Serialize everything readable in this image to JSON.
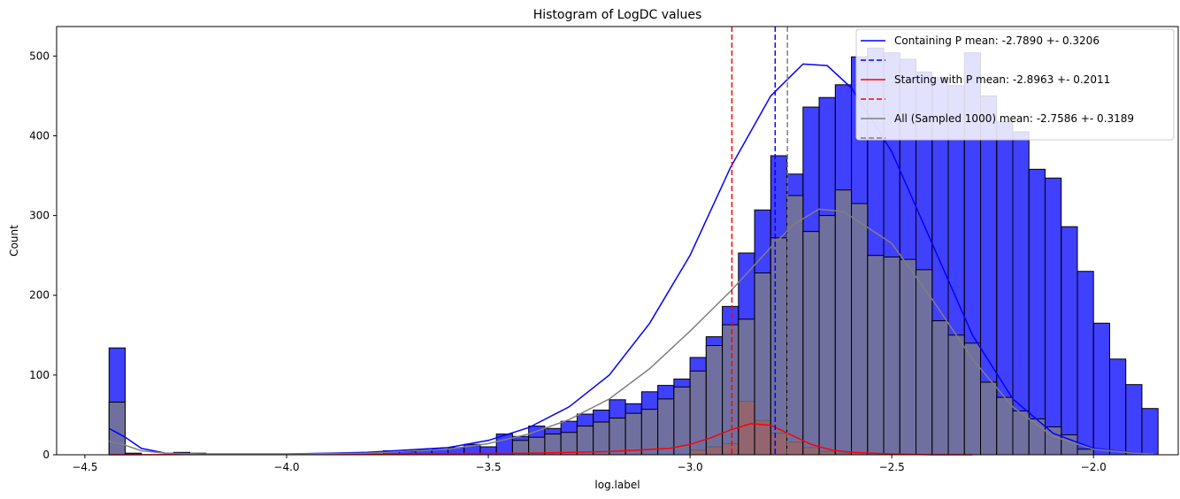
{
  "chart_data": {
    "type": "bar",
    "title": "Histogram of LogDC values",
    "xlabel": "log.label",
    "ylabel": "Count",
    "xlim": [
      -4.57,
      -1.79
    ],
    "ylim": [
      0,
      537
    ],
    "xticks": [
      -4.5,
      -4.0,
      -3.5,
      -3.0,
      -2.5,
      -2.0
    ],
    "xtick_labels": [
      "−4.5",
      "−4.0",
      "−3.5",
      "−3.0",
      "−2.5",
      "−2.0"
    ],
    "yticks": [
      0,
      100,
      200,
      300,
      400,
      500
    ],
    "ytick_labels": [
      "0",
      "100",
      "200",
      "300",
      "400",
      "500"
    ],
    "bin_width": 0.04,
    "legend": {
      "position": "upper right"
    },
    "series": [
      {
        "name": "Containing P mean: -2.7890 +- 0.3206",
        "color": "#0000ff",
        "bar_opacity": 0.75,
        "bins_start": [
          -4.44,
          -4.4,
          -4.28,
          -4.24,
          -3.76,
          -3.72,
          -3.68,
          -3.64,
          -3.6,
          -3.56,
          -3.52,
          -3.48,
          -3.44,
          -3.4,
          -3.36,
          -3.32,
          -3.28,
          -3.24,
          -3.2,
          -3.16,
          -3.12,
          -3.08,
          -3.04,
          -3.0,
          -2.96,
          -2.92,
          -2.88,
          -2.84,
          -2.8,
          -2.76,
          -2.72,
          -2.68,
          -2.64,
          -2.6,
          -2.56,
          -2.52,
          -2.48,
          -2.44,
          -2.4,
          -2.36,
          -2.32,
          -2.28,
          -2.24,
          -2.2,
          -2.16,
          -2.12,
          -2.08,
          -2.04,
          -2.0,
          -1.96,
          -1.92,
          -1.88
        ],
        "counts": [
          134,
          2,
          3,
          2,
          5,
          4,
          6,
          7,
          9,
          13,
          10,
          26,
          23,
          36,
          33,
          42,
          51,
          56,
          69,
          64,
          79,
          87,
          95,
          122,
          148,
          186,
          253,
          307,
          375,
          352,
          436,
          448,
          464,
          499,
          510,
          504,
          496,
          480,
          473,
          463,
          504,
          450,
          418,
          405,
          358,
          347,
          286,
          230,
          165,
          120,
          88,
          58
        ],
        "kde_x": [
          -4.44,
          -4.4,
          -4.36,
          -4.3,
          -4.2,
          -4.0,
          -3.8,
          -3.6,
          -3.5,
          -3.4,
          -3.3,
          -3.2,
          -3.1,
          -3.0,
          -2.9,
          -2.8,
          -2.72,
          -2.66,
          -2.6,
          -2.5,
          -2.4,
          -2.3,
          -2.2,
          -2.1,
          -2.0,
          -1.9,
          -1.85
        ],
        "kde_y": [
          33,
          22,
          8,
          2,
          1,
          1,
          3,
          9,
          18,
          34,
          60,
          100,
          165,
          250,
          360,
          450,
          490,
          488,
          460,
          380,
          265,
          150,
          70,
          27,
          8,
          2,
          1
        ],
        "mean": -2.789
      },
      {
        "name": "Starting with P mean: -2.8963 +- 0.2011",
        "color": "#ff0000",
        "bar_opacity": 0.75,
        "bins_start": [
          -3.0,
          -2.96,
          -2.92,
          -2.88,
          -2.84,
          -2.8,
          -2.76,
          -2.72,
          -2.68,
          -2.64
        ],
        "counts": [
          6,
          10,
          14,
          67,
          43,
          27,
          16,
          9,
          4,
          2
        ],
        "kde_x": [
          -4.44,
          -3.8,
          -3.4,
          -3.2,
          -3.05,
          -3.0,
          -2.95,
          -2.9,
          -2.85,
          -2.8,
          -2.75,
          -2.7,
          -2.65,
          -2.6,
          -2.5,
          -2.4,
          -2.3
        ],
        "kde_y": [
          0,
          1,
          2,
          4,
          8,
          13,
          21,
          31,
          39,
          37,
          25,
          13,
          6,
          3,
          1,
          0,
          0
        ],
        "mean": -2.8963
      },
      {
        "name": "All (Sampled 1000) mean: -2.7586 +- 0.3189",
        "color": "#808080",
        "bar_opacity": 0.75,
        "bins_start": [
          -4.44,
          -3.44,
          -3.4,
          -3.36,
          -3.32,
          -3.28,
          -3.24,
          -3.2,
          -3.16,
          -3.12,
          -3.08,
          -3.04,
          -3.0,
          -2.96,
          -2.92,
          -2.88,
          -2.84,
          -2.8,
          -2.76,
          -2.72,
          -2.68,
          -2.64,
          -2.6,
          -2.56,
          -2.52,
          -2.48,
          -2.44,
          -2.4,
          -2.36,
          -2.32,
          -2.28,
          -2.24,
          -2.2,
          -2.16,
          -2.12,
          -2.08,
          -2.04
        ],
        "counts": [
          66,
          18,
          22,
          26,
          28,
          36,
          41,
          46,
          52,
          57,
          70,
          85,
          105,
          137,
          163,
          170,
          228,
          272,
          325,
          280,
          300,
          332,
          315,
          250,
          248,
          245,
          232,
          168,
          150,
          140,
          91,
          72,
          55,
          45,
          35,
          25,
          7
        ],
        "kde_x": [
          -4.44,
          -4.4,
          -4.36,
          -4.3,
          -4.2,
          -4.0,
          -3.8,
          -3.6,
          -3.5,
          -3.4,
          -3.3,
          -3.2,
          -3.1,
          -3.0,
          -2.9,
          -2.8,
          -2.74,
          -2.68,
          -2.62,
          -2.5,
          -2.4,
          -2.3,
          -2.2,
          -2.1,
          -2.0,
          -1.9,
          -1.85
        ],
        "kde_y": [
          17,
          12,
          5,
          2,
          1,
          1,
          2,
          7,
          14,
          26,
          44,
          70,
          108,
          155,
          205,
          260,
          290,
          308,
          305,
          265,
          195,
          120,
          60,
          23,
          7,
          2,
          1
        ],
        "mean": -2.7586
      }
    ],
    "mean_lines": [
      {
        "series": 0,
        "color": "#0000ff"
      },
      {
        "series": 1,
        "color": "#ff0000"
      },
      {
        "series": 2,
        "color": "#808080"
      }
    ]
  }
}
